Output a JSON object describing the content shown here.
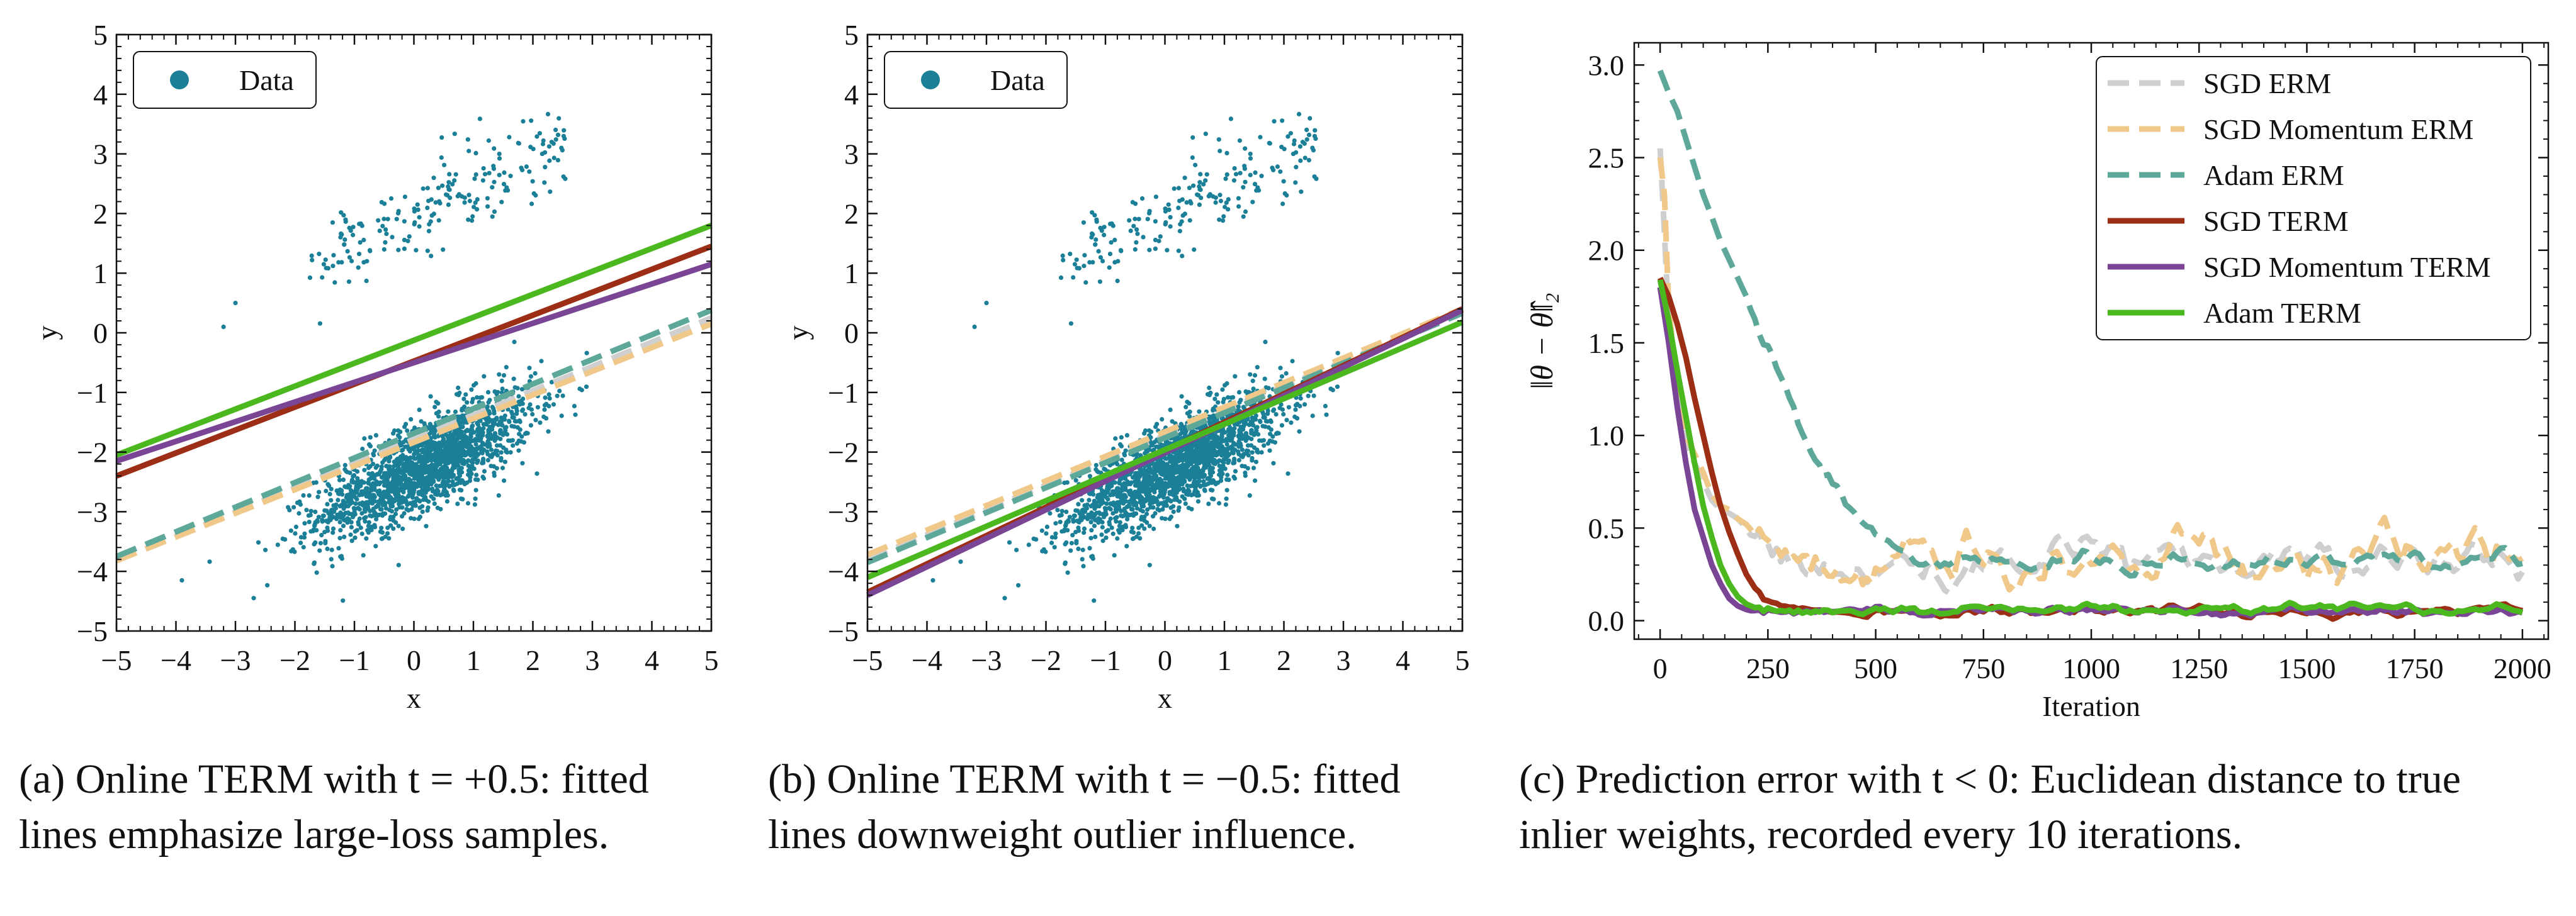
{
  "colors": {
    "data": "#1a7f97",
    "sgd_erm": "#cfcfcf",
    "momentum_erm": "#f0c88a",
    "adam_erm": "#5ea89a",
    "sgd_term": "#9b2e14",
    "momentum_term": "#7b4595",
    "adam_term": "#4cb820"
  },
  "chart_data": [
    {
      "type": "scatter",
      "panel": "a",
      "xlabel": "x",
      "ylabel": "y",
      "xlim": [
        -5,
        5
      ],
      "ylim": [
        -5,
        5
      ],
      "xticks": [
        "−5",
        "−4",
        "−3",
        "−2",
        "−1",
        "0",
        "1",
        "2",
        "3",
        "4",
        "5"
      ],
      "yticks": [
        "−5",
        "−4",
        "−3",
        "−2",
        "−1",
        "0",
        "1",
        "2",
        "3",
        "4",
        "5"
      ],
      "legend": {
        "position": "top-left",
        "entries": [
          "Data"
        ]
      },
      "scatter": {
        "name": "Data",
        "inliers": {
          "x_range": [
            -3.8,
            3.4
          ],
          "mean_x": 0.2,
          "sd_x": 0.9,
          "slope": 0.5,
          "intercept": -2.3,
          "noise": 0.38,
          "count": 1800
        },
        "outliers": {
          "x_range": [
            -1.8,
            2.6
          ],
          "slope": 0.5,
          "intercept": 1.95,
          "noise": 0.38,
          "count": 200
        }
      },
      "lines": [
        {
          "name": "SGD ERM",
          "style": "dashed",
          "color_key": "sgd_erm",
          "x": [
            -5,
            5
          ],
          "y": [
            -3.82,
            0.25
          ]
        },
        {
          "name": "SGD Momentum ERM",
          "style": "dashed",
          "color_key": "momentum_erm",
          "x": [
            -5,
            5
          ],
          "y": [
            -3.82,
            0.15
          ]
        },
        {
          "name": "Adam ERM",
          "style": "dashed",
          "color_key": "adam_erm",
          "x": [
            -5,
            5
          ],
          "y": [
            -3.75,
            0.38
          ]
        },
        {
          "name": "SGD TERM",
          "style": "solid",
          "color_key": "sgd_term",
          "x": [
            -5,
            5
          ],
          "y": [
            -2.4,
            1.45
          ]
        },
        {
          "name": "SGD Momentum TERM",
          "style": "solid",
          "color_key": "momentum_term",
          "x": [
            -5,
            5
          ],
          "y": [
            -2.15,
            1.15
          ]
        },
        {
          "name": "Adam TERM",
          "style": "solid",
          "color_key": "adam_term",
          "x": [
            -5,
            5
          ],
          "y": [
            -2.05,
            1.8
          ]
        }
      ]
    },
    {
      "type": "scatter",
      "panel": "b",
      "xlabel": "x",
      "ylabel": "y",
      "xlim": [
        -5,
        5
      ],
      "ylim": [
        -5,
        5
      ],
      "xticks": [
        "−5",
        "−4",
        "−3",
        "−2",
        "−1",
        "0",
        "1",
        "2",
        "3",
        "4",
        "5"
      ],
      "yticks": [
        "−5",
        "−4",
        "−3",
        "−2",
        "−1",
        "0",
        "1",
        "2",
        "3",
        "4",
        "5"
      ],
      "legend": {
        "position": "top-left",
        "entries": [
          "Data"
        ]
      },
      "scatter": {
        "name": "Data",
        "inliers": {
          "x_range": [
            -3.8,
            3.4
          ],
          "mean_x": 0.2,
          "sd_x": 0.9,
          "slope": 0.5,
          "intercept": -2.3,
          "noise": 0.38,
          "count": 1800
        },
        "outliers": {
          "x_range": [
            -1.8,
            2.6
          ],
          "slope": 0.5,
          "intercept": 1.95,
          "noise": 0.38,
          "count": 200
        }
      },
      "lines": [
        {
          "name": "SGD ERM",
          "style": "dashed",
          "color_key": "sgd_erm",
          "x": [
            -5,
            5
          ],
          "y": [
            -3.8,
            0.35
          ]
        },
        {
          "name": "SGD Momentum ERM",
          "style": "dashed",
          "color_key": "momentum_erm",
          "x": [
            -5,
            5
          ],
          "y": [
            -3.72,
            0.4
          ]
        },
        {
          "name": "Adam ERM",
          "style": "dashed",
          "color_key": "adam_erm",
          "x": [
            -5,
            5
          ],
          "y": [
            -3.85,
            0.33
          ]
        },
        {
          "name": "SGD TERM",
          "style": "solid",
          "color_key": "sgd_term",
          "x": [
            -5,
            5
          ],
          "y": [
            -4.35,
            0.4
          ]
        },
        {
          "name": "SGD Momentum TERM",
          "style": "solid",
          "color_key": "momentum_term",
          "x": [
            -5,
            5
          ],
          "y": [
            -4.4,
            0.38
          ]
        },
        {
          "name": "Adam TERM",
          "style": "solid",
          "color_key": "adam_term",
          "x": [
            -5,
            5
          ],
          "y": [
            -4.1,
            0.18
          ]
        }
      ]
    },
    {
      "type": "line",
      "panel": "c",
      "xlabel": "Iteration",
      "ylabel": "‖θ − θ̂‖₂",
      "xlim": [
        -60,
        2060
      ],
      "ylim": [
        -0.1,
        3.12
      ],
      "xticks": [
        0,
        250,
        500,
        750,
        1000,
        1250,
        1500,
        1750,
        2000
      ],
      "yticks": [
        "0.0",
        "0.5",
        "1.0",
        "1.5",
        "2.0",
        "2.5",
        "3.0"
      ],
      "legend": {
        "position": "top-right"
      },
      "series": [
        {
          "name": "SGD ERM",
          "style": "dashed",
          "color_key": "sgd_erm",
          "points": [
            [
              0,
              2.55
            ],
            [
              10,
              2.1
            ],
            [
              20,
              1.6
            ],
            [
              40,
              1.2
            ],
            [
              60,
              0.95
            ],
            [
              80,
              0.85
            ],
            [
              100,
              0.75
            ],
            [
              120,
              0.65
            ],
            [
              140,
              0.6
            ],
            [
              160,
              0.58
            ],
            [
              180,
              0.55
            ],
            [
              200,
              0.5
            ],
            [
              225,
              0.45
            ],
            [
              250,
              0.4
            ],
            [
              275,
              0.35
            ],
            [
              300,
              0.32
            ],
            [
              325,
              0.3
            ],
            [
              350,
              0.28
            ],
            [
              375,
              0.28
            ],
            [
              400,
              0.27
            ],
            [
              425,
              0.26
            ],
            [
              450,
              0.25
            ],
            [
              475,
              0.24
            ],
            [
              500,
              0.24
            ]
          ],
          "noise": 0.1,
          "level_after": 0.33
        },
        {
          "name": "SGD Momentum ERM",
          "style": "dashed",
          "color_key": "momentum_erm",
          "points": [
            [
              0,
              2.5
            ],
            [
              10,
              2.3
            ],
            [
              20,
              1.7
            ],
            [
              40,
              1.25
            ],
            [
              60,
              1.0
            ],
            [
              80,
              0.9
            ],
            [
              100,
              0.8
            ],
            [
              120,
              0.68
            ],
            [
              140,
              0.62
            ],
            [
              160,
              0.6
            ],
            [
              180,
              0.55
            ],
            [
              200,
              0.52
            ],
            [
              225,
              0.5
            ],
            [
              250,
              0.45
            ],
            [
              275,
              0.38
            ],
            [
              300,
              0.33
            ],
            [
              325,
              0.32
            ],
            [
              350,
              0.3
            ],
            [
              375,
              0.28
            ],
            [
              400,
              0.27
            ],
            [
              425,
              0.26
            ],
            [
              450,
              0.25
            ],
            [
              475,
              0.24
            ],
            [
              500,
              0.24
            ]
          ],
          "noise": 0.13,
          "level_after": 0.35
        },
        {
          "name": "Adam ERM",
          "style": "dashed",
          "color_key": "adam_erm",
          "points": [
            [
              0,
              2.97
            ],
            [
              20,
              2.85
            ],
            [
              40,
              2.75
            ],
            [
              60,
              2.6
            ],
            [
              80,
              2.45
            ],
            [
              100,
              2.3
            ],
            [
              120,
              2.18
            ],
            [
              140,
              2.05
            ],
            [
              160,
              1.95
            ],
            [
              180,
              1.85
            ],
            [
              200,
              1.75
            ],
            [
              220,
              1.62
            ],
            [
              240,
              1.5
            ],
            [
              260,
              1.43
            ],
            [
              280,
              1.32
            ],
            [
              300,
              1.2
            ],
            [
              320,
              1.08
            ],
            [
              340,
              0.95
            ],
            [
              360,
              0.87
            ],
            [
              380,
              0.8
            ],
            [
              400,
              0.75
            ],
            [
              420,
              0.68
            ],
            [
              440,
              0.6
            ],
            [
              460,
              0.55
            ],
            [
              480,
              0.5
            ],
            [
              500,
              0.47
            ]
          ],
          "noise": 0.05,
          "level_after": 0.34
        },
        {
          "name": "SGD TERM",
          "style": "solid",
          "color_key": "sgd_term",
          "points": [
            [
              0,
              1.85
            ],
            [
              20,
              1.75
            ],
            [
              40,
              1.6
            ],
            [
              60,
              1.42
            ],
            [
              80,
              1.2
            ],
            [
              100,
              1.0
            ],
            [
              120,
              0.8
            ],
            [
              140,
              0.62
            ],
            [
              160,
              0.48
            ],
            [
              180,
              0.36
            ],
            [
              200,
              0.25
            ],
            [
              220,
              0.18
            ],
            [
              240,
              0.12
            ],
            [
              260,
              0.09
            ],
            [
              280,
              0.08
            ],
            [
              300,
              0.07
            ],
            [
              320,
              0.06
            ],
            [
              340,
              0.06
            ],
            [
              360,
              0.05
            ],
            [
              380,
              0.05
            ],
            [
              400,
              0.05
            ]
          ],
          "noise": 0.025,
          "level_after": 0.05
        },
        {
          "name": "SGD Momentum TERM",
          "style": "solid",
          "color_key": "momentum_term",
          "points": [
            [
              0,
              1.8
            ],
            [
              20,
              1.5
            ],
            [
              40,
              1.15
            ],
            [
              60,
              0.85
            ],
            [
              80,
              0.6
            ],
            [
              100,
              0.45
            ],
            [
              120,
              0.3
            ],
            [
              140,
              0.2
            ],
            [
              160,
              0.12
            ],
            [
              180,
              0.08
            ],
            [
              200,
              0.06
            ],
            [
              220,
              0.05
            ],
            [
              240,
              0.05
            ],
            [
              260,
              0.05
            ],
            [
              280,
              0.04
            ],
            [
              300,
              0.05
            ],
            [
              320,
              0.04
            ],
            [
              340,
              0.05
            ],
            [
              360,
              0.05
            ],
            [
              380,
              0.05
            ],
            [
              400,
              0.05
            ]
          ],
          "noise": 0.025,
          "level_after": 0.05
        },
        {
          "name": "Adam TERM",
          "style": "solid",
          "color_key": "adam_term",
          "points": [
            [
              0,
              1.84
            ],
            [
              20,
              1.62
            ],
            [
              40,
              1.35
            ],
            [
              60,
              1.1
            ],
            [
              80,
              0.85
            ],
            [
              100,
              0.62
            ],
            [
              120,
              0.45
            ],
            [
              140,
              0.3
            ],
            [
              160,
              0.2
            ],
            [
              180,
              0.13
            ],
            [
              200,
              0.09
            ],
            [
              220,
              0.07
            ],
            [
              240,
              0.06
            ],
            [
              260,
              0.06
            ],
            [
              280,
              0.05
            ],
            [
              300,
              0.05
            ],
            [
              320,
              0.05
            ],
            [
              340,
              0.05
            ],
            [
              360,
              0.05
            ],
            [
              380,
              0.05
            ],
            [
              400,
              0.05
            ]
          ],
          "noise": 0.025,
          "level_after": 0.06
        }
      ]
    }
  ],
  "captions": {
    "a": {
      "line1": "(a) Online TERM with t = +0.5: fitted",
      "line2": "lines emphasize large-loss samples."
    },
    "b": {
      "line1": "(b) Online TERM with t = −0.5: fitted",
      "line2": "lines downweight outlier influence."
    },
    "c": {
      "line1": "(c) Prediction error with t < 0: Euclidean distance to true",
      "line2": "inlier weights, recorded every 10 iterations."
    }
  }
}
